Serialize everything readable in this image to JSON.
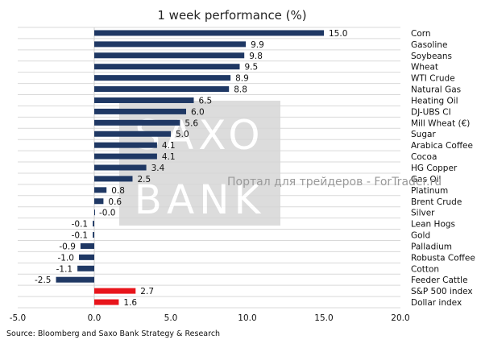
{
  "source_note": "Source: Bloomberg and Saxo Bank Strategy & Research",
  "watermark": {
    "logo_line1": "SAXO",
    "logo_line2": "BANK",
    "caption": "Портал для трейдеров - ForTrader.ru"
  },
  "colors": {
    "commodity_bar": "#1f3864",
    "index_bar": "#e8141b",
    "grid": "#d9d9d9",
    "watermark_box": "#d4d4d4"
  },
  "chart_data": {
    "type": "bar",
    "orientation": "horizontal",
    "title": "1 week performance (%)",
    "xlabel": "",
    "ylabel": "",
    "xlim": [
      -5.0,
      20.0
    ],
    "xticks": [
      "-5.0",
      "0.0",
      "5.0",
      "10.0",
      "15.0",
      "20.0"
    ],
    "grid": true,
    "categories": [
      "Corn",
      "Gasoline",
      "Soybeans",
      "Wheat",
      "WTI Crude",
      "Natural Gas",
      "Heating Oil",
      "DJ-UBS CI",
      "Mill Wheat (€)",
      "Sugar",
      "Arabica Coffee",
      "Cocoa",
      "HG Copper",
      "Gas Oil",
      "Platinum",
      "Brent Crude",
      "Silver",
      "Lean Hogs",
      "Gold",
      "Palladium",
      "Robusta Coffee",
      "Cotton",
      "Feeder Cattle",
      "S&P 500 index",
      "Dollar index"
    ],
    "values": [
      15.0,
      9.9,
      9.8,
      9.5,
      8.9,
      8.8,
      6.5,
      6.0,
      5.6,
      5.0,
      4.1,
      4.1,
      3.4,
      2.5,
      0.8,
      0.6,
      -0.0,
      -0.1,
      -0.1,
      -0.9,
      -1.0,
      -1.1,
      -2.5,
      2.7,
      1.6
    ],
    "value_labels": [
      "15.0",
      "9.9",
      "9.8",
      "9.5",
      "8.9",
      "8.8",
      "6.5",
      "6.0",
      "5.6",
      "5.0",
      "4.1",
      "4.1",
      "3.4",
      "2.5",
      "0.8",
      "0.6",
      "-0.0",
      "-0.1",
      "-0.1",
      "-0.9",
      "-1.0",
      "-1.1",
      "-2.5",
      "2.7",
      "1.6"
    ],
    "highlight": [
      false,
      false,
      false,
      false,
      false,
      false,
      false,
      false,
      false,
      false,
      false,
      false,
      false,
      false,
      false,
      false,
      false,
      false,
      false,
      false,
      false,
      false,
      false,
      true,
      true
    ]
  }
}
